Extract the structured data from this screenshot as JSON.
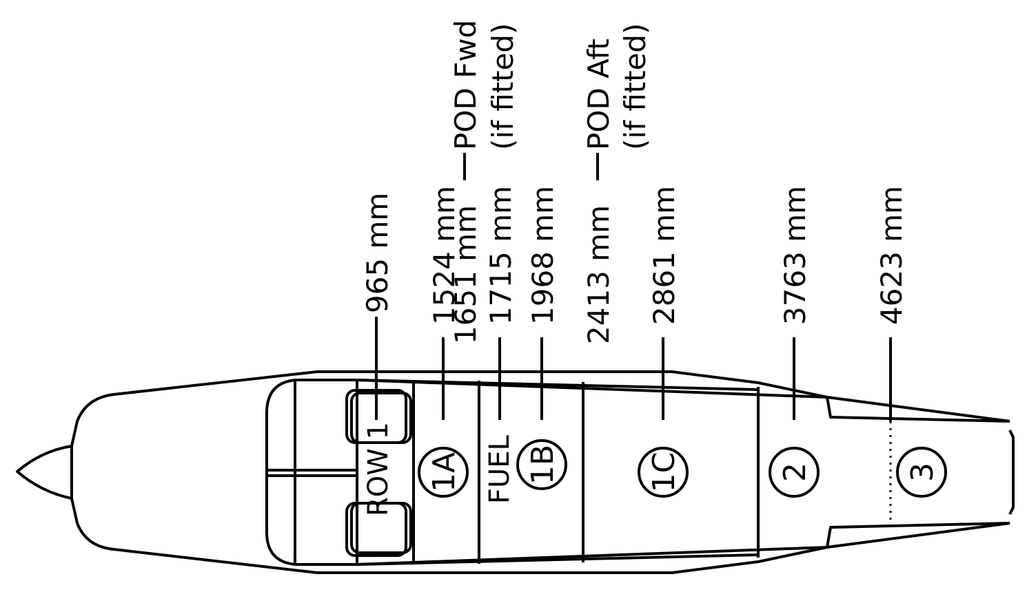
{
  "stations": [
    {
      "id": "row1",
      "label": "965 mm"
    },
    {
      "id": "1a",
      "label": "1524 mm"
    },
    {
      "id": "pod-fwd",
      "label": "1651 mm"
    },
    {
      "id": "fuel",
      "label": "1715 mm"
    },
    {
      "id": "1b",
      "label": "1968 mm"
    },
    {
      "id": "pod-aft",
      "label": "2413 mm"
    },
    {
      "id": "1c",
      "label": "2861 mm"
    },
    {
      "id": "2",
      "label": "3763 mm"
    },
    {
      "id": "3",
      "label": "4623 mm"
    }
  ],
  "pod": {
    "fwd_name": "POD Fwd",
    "aft_name": "POD Aft",
    "fitted_note": "(if fitted)"
  },
  "zones": [
    "1A",
    "1B",
    "1C",
    "2",
    "3"
  ],
  "row_label": "ROW 1",
  "fuel_label": "FUEL"
}
